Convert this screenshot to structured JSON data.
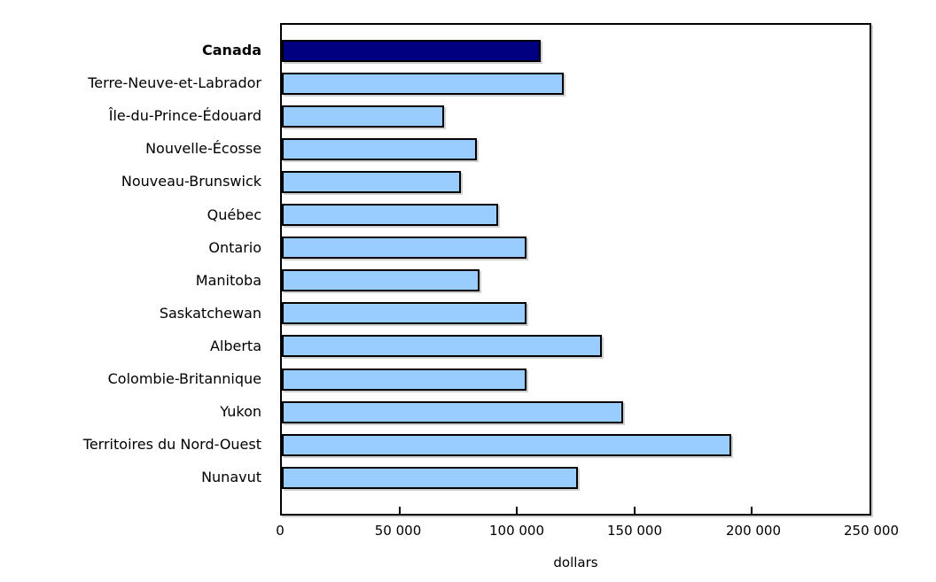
{
  "chart_data": {
    "type": "bar",
    "orientation": "horizontal",
    "title": "",
    "xlabel": "dollars",
    "ylabel": "",
    "xlim": [
      0,
      250000
    ],
    "grid": false,
    "legend": "none",
    "x_ticks": [
      0,
      50000,
      100000,
      150000,
      200000,
      250000
    ],
    "x_tick_labels": [
      "0",
      "50 000",
      "100 000",
      "150 000",
      "200 000",
      "250 000"
    ],
    "categories": [
      "Canada",
      "Terre-Neuve-et-Labrador",
      "Île-du-Prince-Édouard",
      "Nouvelle-Écosse",
      "Nouveau-Brunswick",
      "Québec",
      "Ontario",
      "Manitoba",
      "Saskatchewan",
      "Alberta",
      "Colombie-Britannique",
      "Yukon",
      "Territoires du Nord-Ouest",
      "Nunavut"
    ],
    "values": [
      110000,
      120000,
      69000,
      83000,
      76000,
      92000,
      104000,
      84000,
      104000,
      136000,
      104000,
      145000,
      191000,
      126000
    ],
    "highlight_category": "Canada",
    "bold_categories": [
      "Canada"
    ],
    "colors": {
      "bar_default": "#99CCFF",
      "bar_highlight": "#000080",
      "bar_border": "#000000",
      "axis": "#000000",
      "background": "#FFFFFF"
    }
  }
}
